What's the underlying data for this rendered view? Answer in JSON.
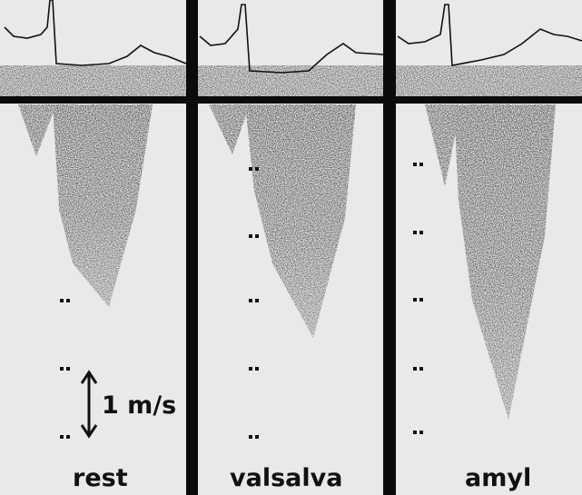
{
  "panels": [
    {
      "label": "rest"
    },
    {
      "label": "valsalva"
    },
    {
      "label": "amyl"
    }
  ],
  "scale": {
    "label": "1 m/s"
  }
}
